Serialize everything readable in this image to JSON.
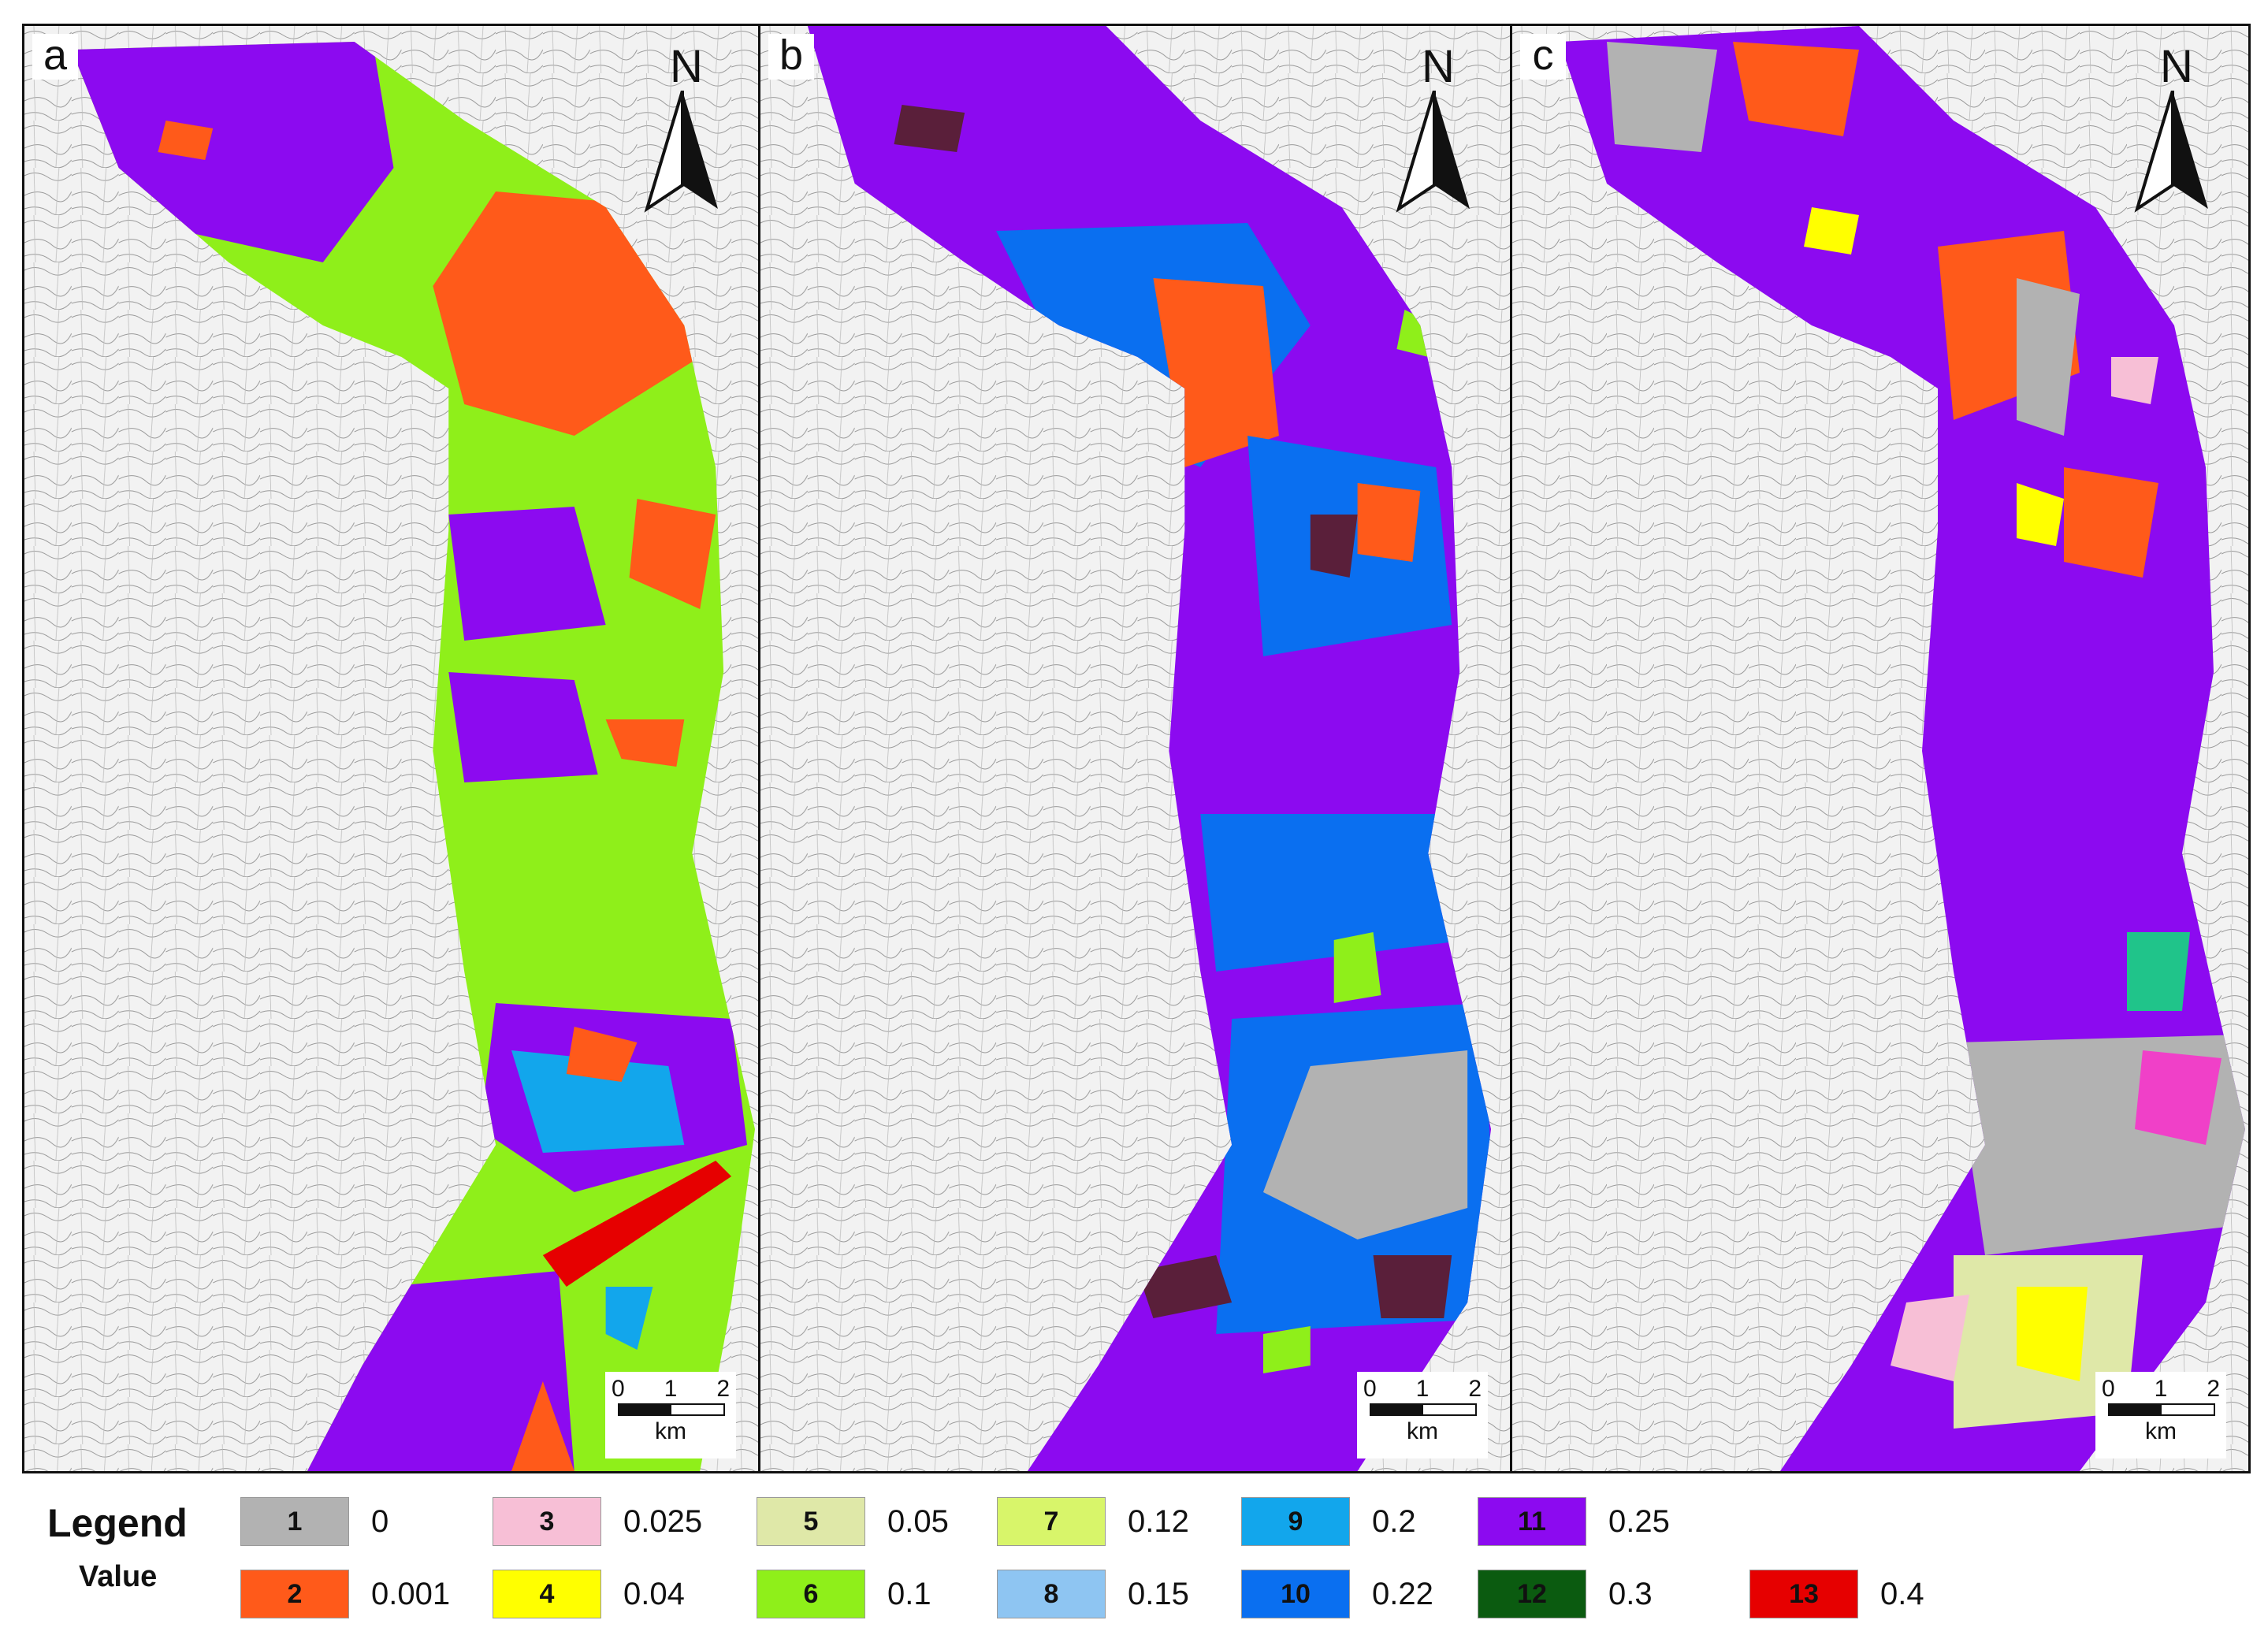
{
  "panels": [
    {
      "letter": "a",
      "north": "N",
      "scale_ticks": [
        "0",
        "1",
        "2"
      ],
      "scale_unit": "km"
    },
    {
      "letter": "b",
      "north": "N",
      "scale_ticks": [
        "0",
        "1",
        "2"
      ],
      "scale_unit": "km"
    },
    {
      "letter": "c",
      "north": "N",
      "scale_ticks": [
        "0",
        "1",
        "2"
      ],
      "scale_unit": "km"
    }
  ],
  "legend": {
    "title": "Legend",
    "subtitle": "Value",
    "items": [
      {
        "code": "1",
        "value": "0",
        "color": "#b2b2b2"
      },
      {
        "code": "2",
        "value": "0.001",
        "color": "#ff5a1a"
      },
      {
        "code": "3",
        "value": "0.025",
        "color": "#f7bfd6"
      },
      {
        "code": "4",
        "value": "0.04",
        "color": "#ffff00"
      },
      {
        "code": "5",
        "value": "0.05",
        "color": "#dfe8a8"
      },
      {
        "code": "6",
        "value": "0.1",
        "color": "#8fef1a"
      },
      {
        "code": "7",
        "value": "0.12",
        "color": "#d8f56a"
      },
      {
        "code": "8",
        "value": "0.15",
        "color": "#8ec5f2"
      },
      {
        "code": "9",
        "value": "0.2",
        "color": "#12a6ec"
      },
      {
        "code": "10",
        "value": "0.22",
        "color": "#0a6ff0"
      },
      {
        "code": "11",
        "value": "0.25",
        "color": "#8c0af0"
      },
      {
        "code": "12",
        "value": "0.3",
        "color": "#0b5b10"
      },
      {
        "code": "13",
        "value": "0.4",
        "color": "#e60000"
      }
    ]
  }
}
